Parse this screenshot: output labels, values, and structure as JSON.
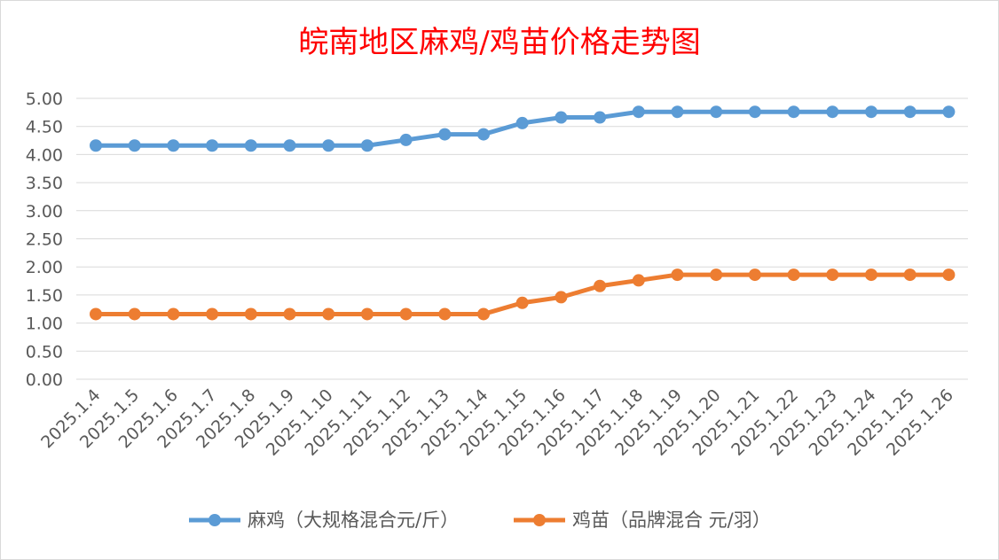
{
  "chart_data": {
    "type": "line",
    "title": "皖南地区麻鸡/鸡苗价格走势图",
    "xlabel": "",
    "ylabel": "",
    "ylim": [
      0,
      5
    ],
    "y_ticks": [
      "5.00",
      "4.50",
      "4.00",
      "3.50",
      "3.00",
      "2.50",
      "2.00",
      "1.50",
      "1.00",
      "0.50",
      "0.00"
    ],
    "categories": [
      "2025.1.4",
      "2025.1.5",
      "2025.1.6",
      "2025.1.7",
      "2025.1.8",
      "2025.1.9",
      "2025.1.10",
      "2025.1.11",
      "2025.1.12",
      "2025.1.13",
      "2025.1.14",
      "2025.1.15",
      "2025.1.16",
      "2025.1.17",
      "2025.1.18",
      "2025.1.19",
      "2025.1.20",
      "2025.1.21",
      "2025.1.22",
      "2025.1.23",
      "2025.1.24",
      "2025.1.25",
      "2025.1.26"
    ],
    "series": [
      {
        "name": "麻鸡（大规格混合元/斤）",
        "color": "#5b9bd5",
        "values": [
          4.16,
          4.16,
          4.16,
          4.16,
          4.16,
          4.16,
          4.16,
          4.16,
          4.26,
          4.36,
          4.36,
          4.56,
          4.66,
          4.66,
          4.76,
          4.76,
          4.76,
          4.76,
          4.76,
          4.76,
          4.76,
          4.76,
          4.76
        ]
      },
      {
        "name": "鸡苗（品牌混合 元/羽）",
        "color": "#ed7d31",
        "values": [
          1.16,
          1.16,
          1.16,
          1.16,
          1.16,
          1.16,
          1.16,
          1.16,
          1.16,
          1.16,
          1.16,
          1.36,
          1.46,
          1.66,
          1.76,
          1.86,
          1.86,
          1.86,
          1.86,
          1.86,
          1.86,
          1.86,
          1.86
        ]
      }
    ],
    "grid": true,
    "legend_position": "bottom"
  }
}
